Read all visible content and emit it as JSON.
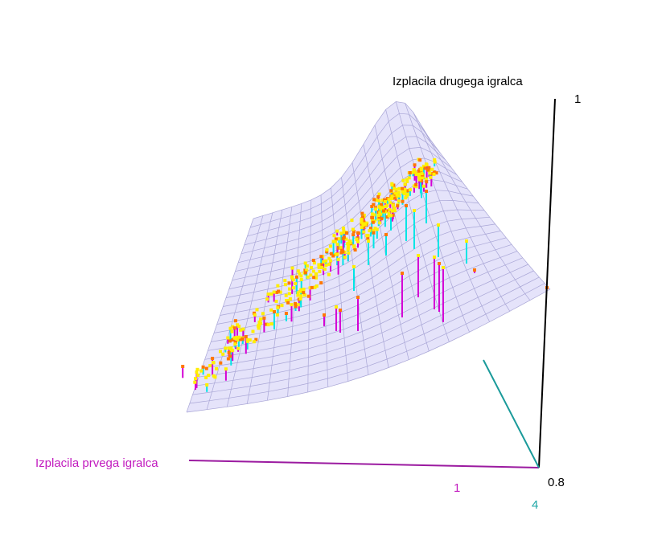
{
  "chart_data": {
    "type": "surface3d",
    "title": "",
    "axes": {
      "x": {
        "label": "Izplacila prvega igralca",
        "tick_labels": [
          "1"
        ],
        "color": "#c21cbf"
      },
      "z": {
        "label": "Izplacila drugega igralca",
        "tick_labels": [
          "1",
          "0.8"
        ],
        "color": "#000000"
      },
      "depth": {
        "tick_labels": [
          "4"
        ],
        "color": "#1fa7a7"
      }
    },
    "surface": {
      "color": "#b9b6ee",
      "grid": true
    },
    "points": {
      "marker_colors": [
        "#ffff00",
        "#ff8c00"
      ],
      "stem_colors": [
        "#d400d4",
        "#00e5e5"
      ],
      "count_estimate": 400
    },
    "colors": {
      "surface_fill": "#dcdaf8",
      "surface_grid": "#a9a6d6",
      "magenta": "#cc33cc",
      "cyan": "#1ab0b0",
      "yellow": "#ffee00",
      "orange": "#ff7700"
    }
  }
}
